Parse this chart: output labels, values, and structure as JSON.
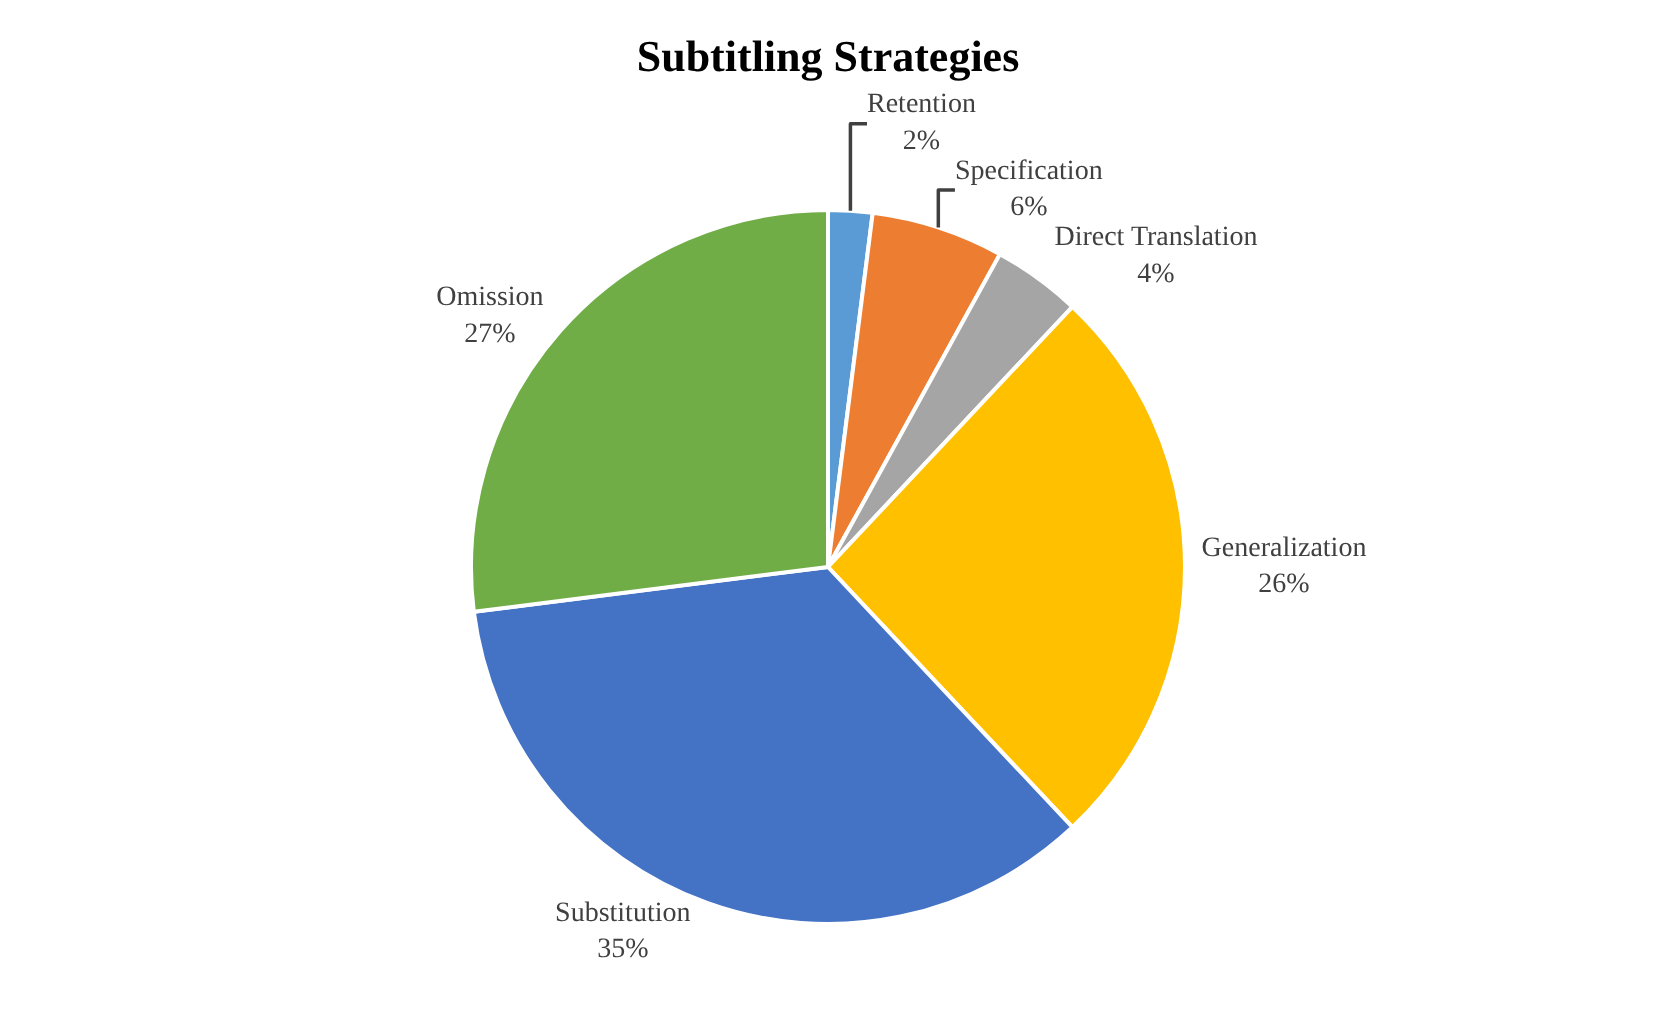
{
  "chart_data": {
    "type": "pie",
    "title": "Subtitling Strategies",
    "categories": [
      "Retention",
      "Specification",
      "Direct Translation",
      "Generalization",
      "Substitution",
      "Omission"
    ],
    "values": [
      2,
      6,
      4,
      26,
      35,
      27
    ],
    "value_labels": [
      "2%",
      "6%",
      "4%",
      "26%",
      "35%",
      "27%"
    ],
    "colors": [
      "#5b9bd5",
      "#ed7d31",
      "#a5a5a5",
      "#ffc000",
      "#4472c4",
      "#70ad47"
    ],
    "legend": false
  }
}
